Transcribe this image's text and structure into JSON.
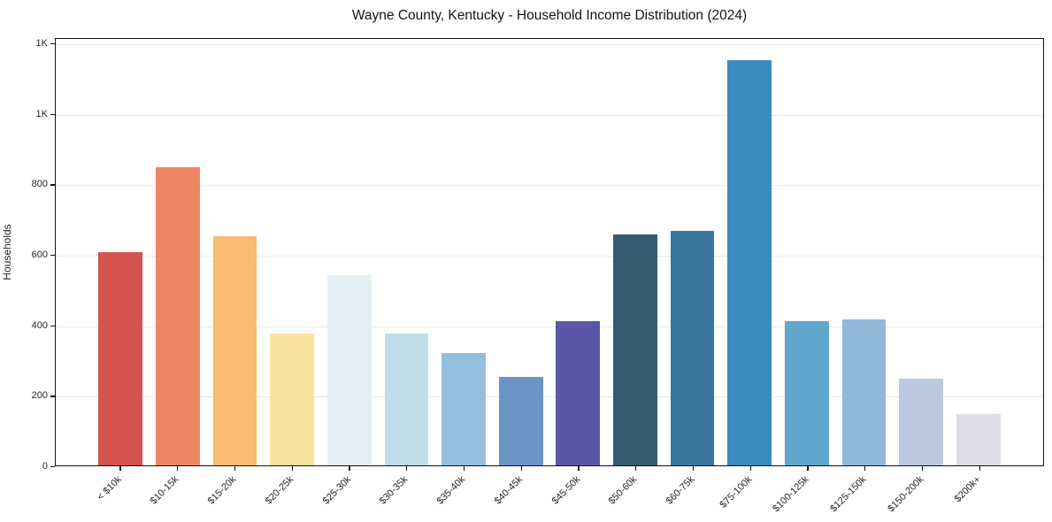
{
  "chart_data": {
    "type": "bar",
    "title": "Wayne County, Kentucky - Household Income Distribution (2024)",
    "xlabel": "",
    "ylabel": "Households",
    "categories": [
      "< $10k",
      "$10-15k",
      "$15-20k",
      "$20-25k",
      "$25-30k",
      "$30-35k",
      "$35-40k",
      "$40-45k",
      "$45-50k",
      "$50-60k",
      "$60-75k",
      "$75-100k",
      "$100-125k",
      "$125-150k",
      "$150-200k",
      "$200k+"
    ],
    "values": [
      605,
      845,
      650,
      375,
      540,
      375,
      320,
      250,
      410,
      655,
      665,
      1150,
      410,
      415,
      245,
      145
    ],
    "bar_colors": [
      "#d4534f",
      "#ef8565",
      "#f9ba72",
      "#fbe29c",
      "#e4eff3",
      "#bfdeea",
      "#94bedd",
      "#6c94c6",
      "#5958a8",
      "#345b70",
      "#38769e",
      "#398bc2",
      "#60a7cc",
      "#90b8da",
      "#bbc9de",
      "#dcdde9"
    ],
    "ylim": [
      0,
      1215
    ],
    "yticks": [
      {
        "value": 0,
        "label": "0"
      },
      {
        "value": 200,
        "label": "200"
      },
      {
        "value": 400,
        "label": "400"
      },
      {
        "value": 600,
        "label": "600"
      },
      {
        "value": 800,
        "label": "800"
      },
      {
        "value": 1000,
        "label": "1K"
      },
      {
        "value": 1200,
        "label": "1K"
      }
    ],
    "grid": "horizontal",
    "gridline_color": "#e9e9e9",
    "legend": "none",
    "background": "#ffffff",
    "x_tick_rotation_deg": 45
  }
}
